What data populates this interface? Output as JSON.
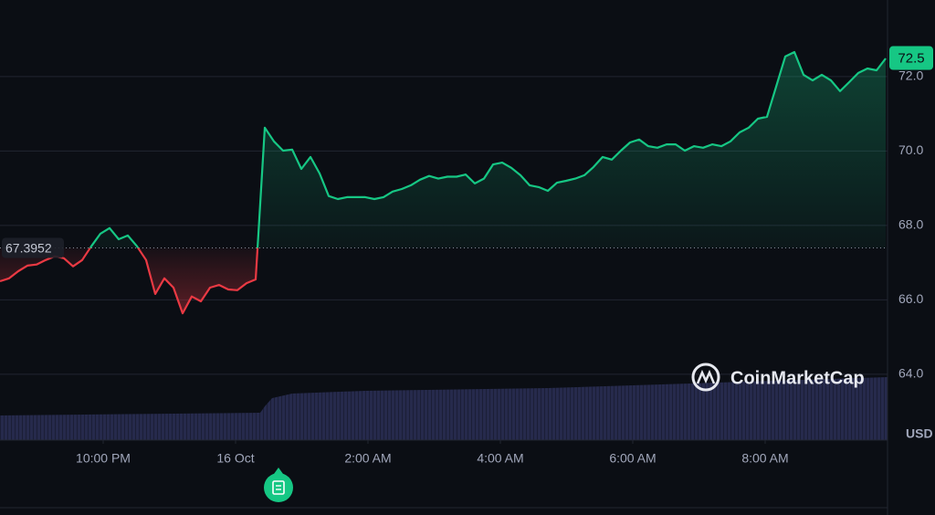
{
  "chart_data": {
    "type": "line",
    "values": [
      66.5,
      66.58,
      66.77,
      66.92,
      66.95,
      67.07,
      67.17,
      67.12,
      66.9,
      67.07,
      67.44,
      67.78,
      67.93,
      67.63,
      67.73,
      67.44,
      67.07,
      66.16,
      66.58,
      66.33,
      65.64,
      66.09,
      65.96,
      66.33,
      66.4,
      66.28,
      66.26,
      66.45,
      66.55,
      70.63,
      70.26,
      70.01,
      70.04,
      69.52,
      69.84,
      69.4,
      68.79,
      68.71,
      68.76,
      68.76,
      68.76,
      68.71,
      68.76,
      68.91,
      68.98,
      69.08,
      69.23,
      69.33,
      69.26,
      69.31,
      69.31,
      69.37,
      69.13,
      69.26,
      69.64,
      69.69,
      69.55,
      69.35,
      69.08,
      69.03,
      68.93,
      69.15,
      69.2,
      69.26,
      69.35,
      69.57,
      69.84,
      69.77,
      70.01,
      70.23,
      70.31,
      70.13,
      70.09,
      70.18,
      70.18,
      70.01,
      70.13,
      70.09,
      70.18,
      70.13,
      70.26,
      70.5,
      70.63,
      70.87,
      70.92,
      71.73,
      72.54,
      72.66,
      72.05,
      71.9,
      72.05,
      71.9,
      71.61,
      71.85,
      72.1,
      72.22,
      72.17,
      72.49
    ],
    "colors": {
      "up": "#16c784",
      "down": "#ea3943"
    },
    "baseline": 67.3952,
    "last_price": 72.5,
    "currency": "USD",
    "watermark": "CoinMarketCap",
    "ylim": [
      62.23,
      74.06
    ],
    "yticks": [
      {
        "value": 64,
        "label": "64.0"
      },
      {
        "value": 66,
        "label": "66.0"
      },
      {
        "value": 68,
        "label": "68.0"
      },
      {
        "value": 70,
        "label": "70.0"
      },
      {
        "value": 72,
        "label": "72.0"
      }
    ],
    "xlim": [
      0,
      97.2
    ],
    "xticks": [
      {
        "value": 11.3,
        "label": "10:00 PM"
      },
      {
        "value": 25.8,
        "label": "16 Oct"
      },
      {
        "value": 40.3,
        "label": "2:00 AM"
      },
      {
        "value": 54.8,
        "label": "4:00 AM"
      },
      {
        "value": 69.3,
        "label": "6:00 AM"
      },
      {
        "value": 83.8,
        "label": "8:00 AM"
      }
    ],
    "grid": true
  }
}
